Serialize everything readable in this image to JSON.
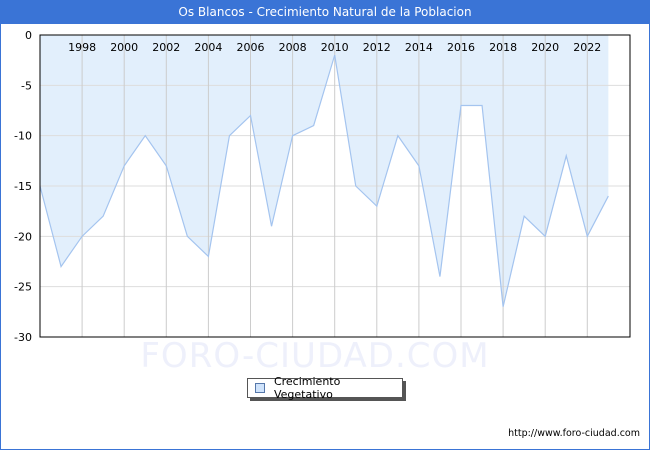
{
  "title": "Os Blancos - Crecimiento Natural de la Poblacion",
  "watermark": "FORO-CIUDAD.COM",
  "footer_url": "http://www.foro-ciudad.com",
  "legend": {
    "label": "Crecimiento Vegetativo",
    "color": "#cfe3fb"
  },
  "colors": {
    "title_bg": "#3a74d6",
    "fill": "#e2effc",
    "line": "#a4c4ef",
    "grid": "#dddddd"
  },
  "chart_data": {
    "type": "area",
    "title": "Os Blancos - Crecimiento Natural de la Poblacion",
    "xlabel": "",
    "ylabel": "",
    "ylim": [
      -30,
      0
    ],
    "yticks": [
      0,
      -5,
      -10,
      -15,
      -20,
      -25,
      -30
    ],
    "xtick_labels": [
      "1998",
      "2000",
      "2002",
      "2004",
      "2006",
      "2008",
      "2010",
      "2012",
      "2014",
      "2016",
      "2018",
      "2020",
      "2022"
    ],
    "x": [
      1996,
      1997,
      1998,
      1999,
      2000,
      2001,
      2002,
      2003,
      2004,
      2005,
      2006,
      2007,
      2008,
      2009,
      2010,
      2011,
      2012,
      2013,
      2014,
      2015,
      2016,
      2017,
      2018,
      2019,
      2020,
      2021,
      2022,
      2023
    ],
    "series": [
      {
        "name": "Crecimiento Vegetativo",
        "values": [
          -15,
          -23,
          -20,
          -18,
          -13,
          -10,
          -13,
          -20,
          -22,
          -10,
          -8,
          -19,
          -10,
          -9,
          -2,
          -15,
          -17,
          -10,
          -13,
          -24,
          -7,
          -7,
          -27,
          -18,
          -20,
          -12,
          -20,
          -16
        ]
      }
    ],
    "legend_position": "bottom",
    "grid": true
  }
}
